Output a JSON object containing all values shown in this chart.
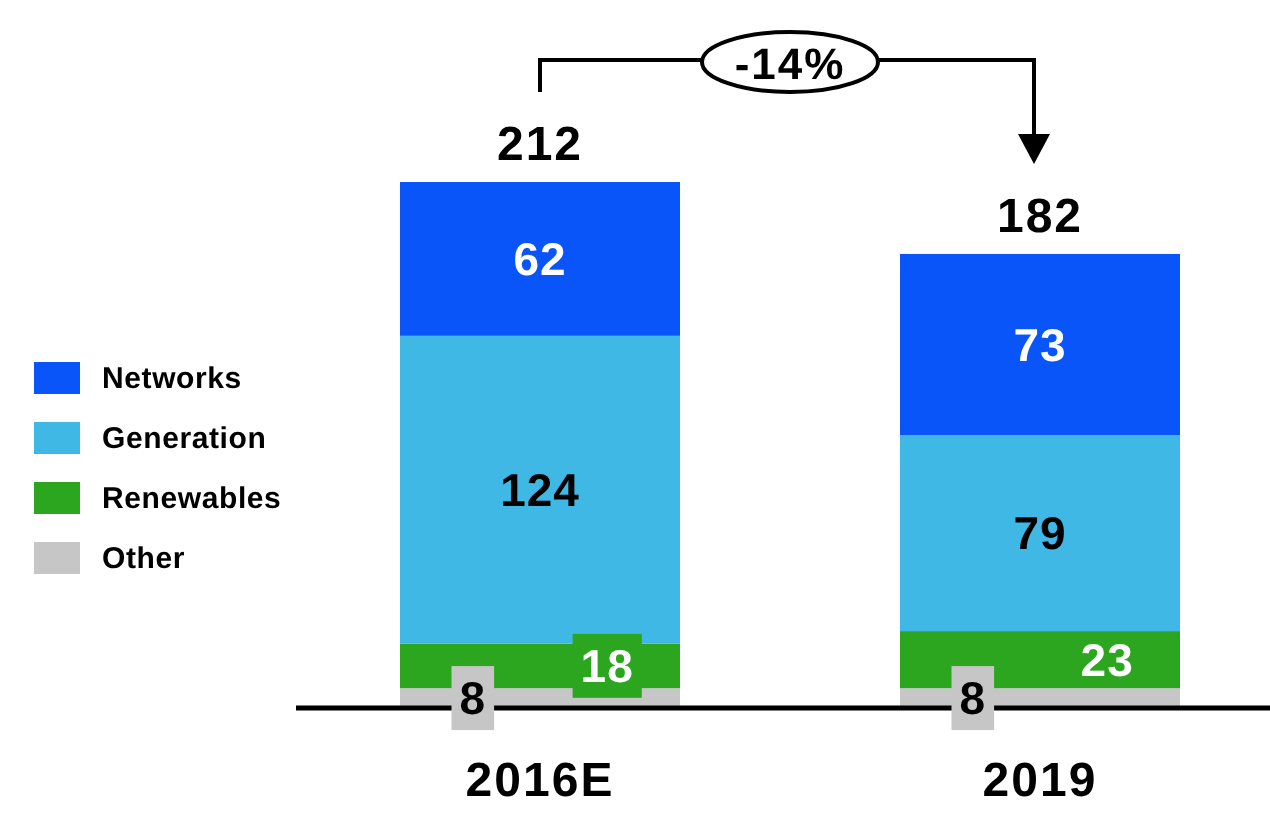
{
  "chart_data": {
    "type": "bar",
    "stacked": true,
    "categories": [
      "2016E",
      "2019"
    ],
    "series": [
      {
        "name": "Other",
        "color": "#c6c6c6",
        "values": [
          8,
          8
        ]
      },
      {
        "name": "Renewables",
        "color": "#2ca61f",
        "values": [
          18,
          23
        ]
      },
      {
        "name": "Generation",
        "color": "#40b8e6",
        "values": [
          124,
          79
        ]
      },
      {
        "name": "Networks",
        "color": "#0a55fa",
        "values": [
          62,
          73
        ]
      }
    ],
    "data_labels": true,
    "totals": [
      "212",
      "182"
    ],
    "annotations": [
      "-14%"
    ],
    "legend": "left",
    "grid": false
  }
}
